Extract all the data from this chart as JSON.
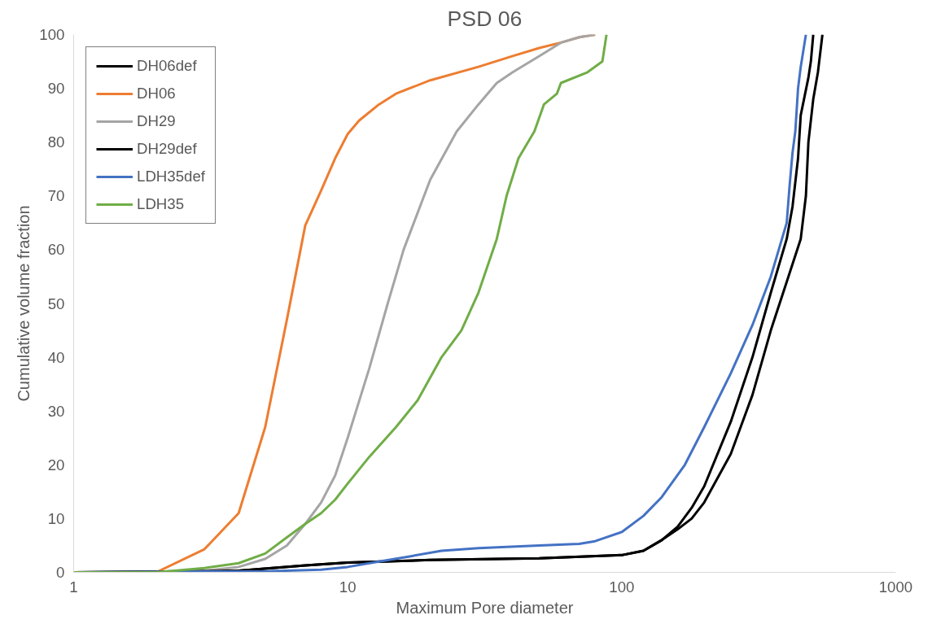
{
  "chart_data": {
    "type": "line",
    "title": "PSD 06",
    "xlabel": "Maximum Pore diameter",
    "ylabel": "Cumulative volume fraction",
    "log": "x",
    "xlim": [
      1,
      1000
    ],
    "xticks": [
      1,
      10,
      100,
      1000
    ],
    "ylim": [
      0,
      100
    ],
    "yticks": [
      0,
      10,
      20,
      30,
      40,
      50,
      60,
      70,
      80,
      90,
      100
    ],
    "grid": false,
    "legend": "top left",
    "marker": "none",
    "line_style": "solid",
    "series": [
      {
        "name": "DH06def",
        "color": "#000000",
        "x": [
          1,
          4,
          7,
          10,
          20,
          50,
          100,
          120,
          140,
          160,
          180,
          200,
          250,
          300,
          350,
          400,
          420,
          440,
          450,
          480,
          490,
          500
        ],
        "values": [
          0,
          0.3,
          1.3,
          1.8,
          2.3,
          2.6,
          3.2,
          4,
          6,
          8.5,
          12,
          16,
          28,
          40,
          52,
          62,
          68,
          77,
          85,
          92,
          95,
          100
        ]
      },
      {
        "name": "DH06",
        "color": "#ed7d31",
        "x": [
          1,
          2,
          3,
          4,
          5,
          6,
          7,
          8,
          9,
          10,
          11,
          13,
          15,
          20,
          30,
          40,
          50,
          60,
          70,
          80
        ],
        "values": [
          0,
          0,
          4.3,
          11,
          27,
          47,
          64.5,
          71,
          77,
          81.5,
          84,
          87,
          89,
          91.5,
          94,
          96,
          97.5,
          98.5,
          99.5,
          100
        ]
      },
      {
        "name": "DH29",
        "color": "#a5a5a5",
        "x": [
          1,
          2,
          3,
          4,
          5,
          6,
          7,
          8,
          9,
          10,
          12,
          14,
          16,
          20,
          25,
          30,
          35,
          40,
          50,
          60,
          70,
          80
        ],
        "values": [
          0,
          0,
          0.3,
          1,
          2.5,
          5,
          9,
          13,
          18,
          25,
          38,
          50,
          60,
          73,
          82,
          87,
          91,
          93,
          96,
          98.5,
          99.5,
          100
        ]
      },
      {
        "name": "DH29def",
        "color": "#000000",
        "x": [
          1,
          4,
          7,
          10,
          20,
          50,
          100,
          120,
          140,
          160,
          180,
          200,
          250,
          300,
          350,
          400,
          450,
          470,
          480,
          500,
          520,
          540
        ],
        "values": [
          0,
          0.3,
          1.3,
          1.8,
          2.3,
          2.6,
          3.2,
          4,
          6,
          8,
          10,
          13,
          22,
          33,
          45,
          54,
          62,
          70,
          80,
          88,
          93,
          100
        ]
      },
      {
        "name": "LDH35def",
        "color": "#4472c4",
        "x": [
          1,
          5,
          8,
          10,
          13,
          17,
          22,
          30,
          50,
          70,
          80,
          100,
          120,
          140,
          170,
          200,
          250,
          300,
          350,
          400,
          410,
          420,
          430,
          440,
          450,
          460,
          470
        ],
        "values": [
          0,
          0.2,
          0.5,
          1,
          2,
          3,
          4,
          4.5,
          5,
          5.3,
          5.8,
          7.5,
          10.5,
          14,
          20,
          27,
          37,
          46,
          55,
          65,
          72,
          78,
          82,
          90,
          94,
          97,
          100
        ]
      },
      {
        "name": "LDH35",
        "color": "#70ad47",
        "x": [
          1,
          2,
          3,
          4,
          5,
          6,
          7,
          8,
          9,
          10,
          12,
          15,
          18,
          22,
          26,
          30,
          35,
          38,
          42,
          48,
          52,
          58,
          60,
          75,
          85,
          88
        ],
        "values": [
          0,
          0,
          0.8,
          1.7,
          3.5,
          6.5,
          9,
          11,
          13.5,
          16.5,
          21.5,
          27,
          32,
          40,
          45,
          52,
          62,
          70,
          77,
          82,
          87,
          89,
          91,
          93,
          95,
          100
        ]
      }
    ]
  }
}
